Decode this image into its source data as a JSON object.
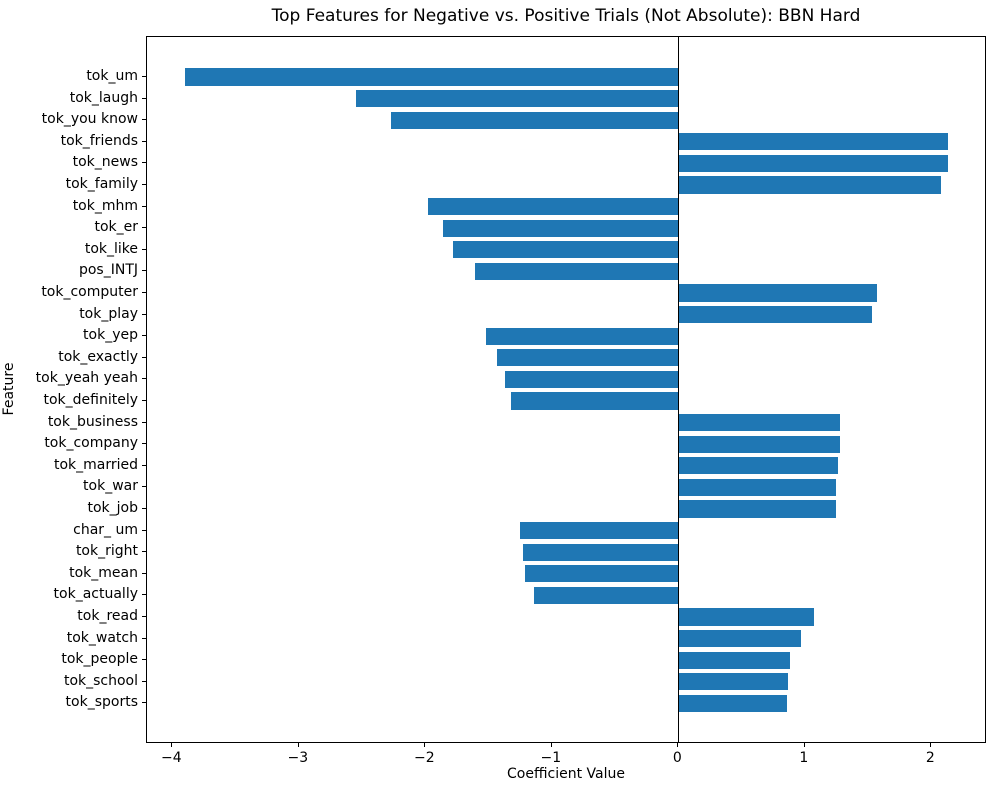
{
  "chart_data": {
    "type": "bar",
    "orientation": "horizontal",
    "title": "Top Features for Negative vs. Positive Trials (Not Absolute): BBN Hard",
    "xlabel": "Coefficient Value",
    "ylabel": "Feature",
    "xlim": [
      -4.2,
      2.44
    ],
    "x_tick_values": [
      -4,
      -3,
      -2,
      -1,
      0,
      1,
      2
    ],
    "x_tick_labels": [
      "−4",
      "−3",
      "−2",
      "−1",
      "0",
      "1",
      "2"
    ],
    "bar_color": "#1f77b4",
    "zero_line": true,
    "grid": false,
    "categories": [
      "tok_um",
      "tok_laugh",
      "tok_you know",
      "tok_friends",
      "tok_news",
      "tok_family",
      "tok_mhm",
      "tok_er",
      "tok_like",
      "pos_INTJ",
      "tok_computer",
      "tok_play",
      "tok_yep",
      "tok_exactly",
      "tok_yeah yeah",
      "tok_definitely",
      "tok_business",
      "tok_company",
      "tok_married",
      "tok_war",
      "tok_job",
      "char_ um",
      "tok_right",
      "tok_mean",
      "tok_actually",
      "tok_read",
      "tok_watch",
      "tok_people",
      "tok_school",
      "tok_sports"
    ],
    "values": [
      -3.9,
      -2.55,
      -2.27,
      2.13,
      2.13,
      2.08,
      -1.98,
      -1.86,
      -1.78,
      -1.61,
      1.57,
      1.53,
      -1.52,
      -1.43,
      -1.37,
      -1.32,
      1.28,
      1.28,
      1.26,
      1.25,
      1.25,
      -1.25,
      -1.23,
      -1.21,
      -1.14,
      1.07,
      0.97,
      0.88,
      0.87,
      0.86
    ]
  }
}
